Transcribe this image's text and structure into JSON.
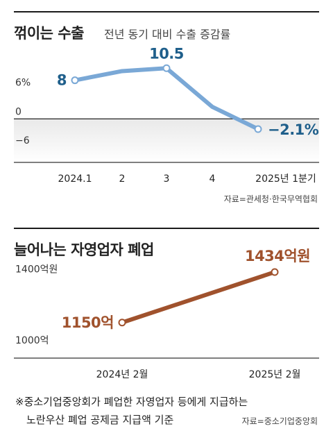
{
  "chart_data": [
    {
      "type": "line",
      "title": "꺾이는 수출",
      "subtitle": "전년 동기 대비 수출 증감률",
      "categories": [
        "2024.1",
        "2",
        "3",
        "4",
        "2025년 1분기"
      ],
      "values": [
        8,
        9.9,
        10.5,
        2.5,
        -2.1
      ],
      "value_labels": [
        "8",
        "",
        "10.5",
        "",
        "−2.1%"
      ],
      "yticks": [
        {
          "value": 6,
          "label": "6%"
        },
        {
          "value": 0,
          "label": "0"
        },
        {
          "value": -6,
          "label": "−6"
        }
      ],
      "ylim": [
        -9,
        16
      ],
      "source": "자료=관세청·한국무역협회",
      "colors": {
        "line": "#7aa8d6",
        "label": "#1f5f8b",
        "negative_band": "#e9e9e9"
      }
    },
    {
      "type": "line",
      "title": "늘어나는 자영업자 폐업",
      "categories": [
        "2024년 2월",
        "2025년 2월"
      ],
      "values": [
        1150,
        1434
      ],
      "value_labels": [
        "1150억",
        "1434억원"
      ],
      "yticks": [
        {
          "value": 1400,
          "label": "1400억원"
        },
        {
          "value": 1000,
          "label": "1000억"
        }
      ],
      "ylim": [
        950,
        1520
      ],
      "note_lines": [
        "※중소기업중앙회가 폐업한 자영업자 등에게 지급하는",
        "노란우산 폐업 공제금 지급액 기준"
      ],
      "source": "자료=중소기업중앙회",
      "colors": {
        "line": "#a0522d",
        "label": "#a0522d"
      }
    }
  ]
}
